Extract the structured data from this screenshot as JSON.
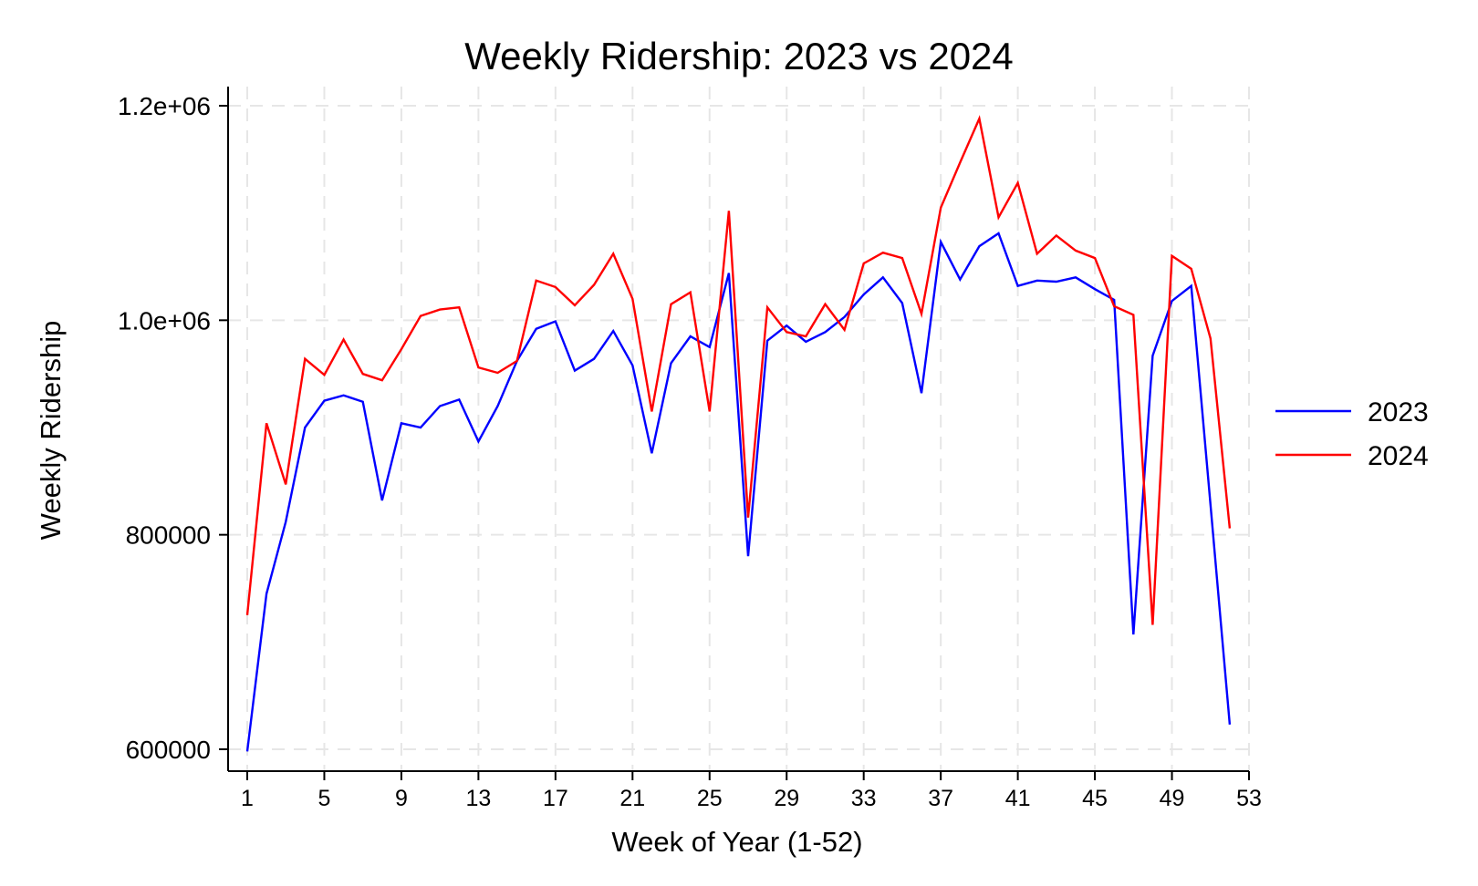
{
  "chart_data": {
    "type": "line",
    "title": "Weekly Ridership: 2023 vs 2024",
    "xlabel": "Week of Year (1-52)",
    "ylabel": "Weekly Ridership",
    "xlim": [
      1,
      53
    ],
    "ylim": [
      590000,
      1210000
    ],
    "xticks": [
      1,
      5,
      9,
      13,
      17,
      21,
      25,
      29,
      33,
      37,
      41,
      45,
      49,
      53
    ],
    "xtick_labels": [
      "1",
      "5",
      "9",
      "13",
      "17",
      "21",
      "25",
      "29",
      "33",
      "37",
      "41",
      "45",
      "49",
      "53"
    ],
    "yticks": [
      600000,
      800000,
      1000000,
      1200000
    ],
    "ytick_labels": [
      "600000",
      "800000",
      "1.0e+06",
      "1.2e+06"
    ],
    "grid": true,
    "legend_position": "right",
    "x": [
      1,
      2,
      3,
      4,
      5,
      6,
      7,
      8,
      9,
      10,
      11,
      12,
      13,
      14,
      15,
      16,
      17,
      18,
      19,
      20,
      21,
      22,
      23,
      24,
      25,
      26,
      27,
      28,
      29,
      30,
      31,
      32,
      33,
      34,
      35,
      36,
      37,
      38,
      39,
      40,
      41,
      42,
      43,
      44,
      45,
      46,
      47,
      48,
      49,
      50,
      51,
      52
    ],
    "series": [
      {
        "name": "2023",
        "color": "#0000ff",
        "values": [
          598000,
          745000,
          812000,
          900000,
          925000,
          930000,
          924000,
          832000,
          904000,
          900000,
          920000,
          926000,
          887000,
          920000,
          962000,
          992000,
          999000,
          953000,
          964000,
          990000,
          958000,
          876000,
          960000,
          985000,
          975000,
          1044000,
          780000,
          981000,
          995000,
          980000,
          989000,
          1003000,
          1024000,
          1040000,
          1016000,
          932000,
          1073000,
          1038000,
          1069000,
          1081000,
          1032000,
          1037000,
          1036000,
          1040000,
          1029000,
          1019000,
          707000,
          967000,
          1018000,
          1032000,
          828000,
          623000
        ]
      },
      {
        "name": "2024",
        "color": "#ff0000",
        "values": [
          725000,
          904000,
          847000,
          964000,
          949000,
          982000,
          950000,
          944000,
          973000,
          1004000,
          1010000,
          1012000,
          956000,
          951000,
          962000,
          1037000,
          1031000,
          1014000,
          1033000,
          1062000,
          1020000,
          915000,
          1015000,
          1026000,
          915000,
          1102000,
          816000,
          1012000,
          989000,
          985000,
          1015000,
          991000,
          1053000,
          1063000,
          1058000,
          1006000,
          1105000,
          1147000,
          1188000,
          1096000,
          1128000,
          1062000,
          1079000,
          1065000,
          1058000,
          1013000,
          1005000,
          716000,
          1060000,
          1048000,
          983000,
          806000
        ]
      }
    ]
  }
}
